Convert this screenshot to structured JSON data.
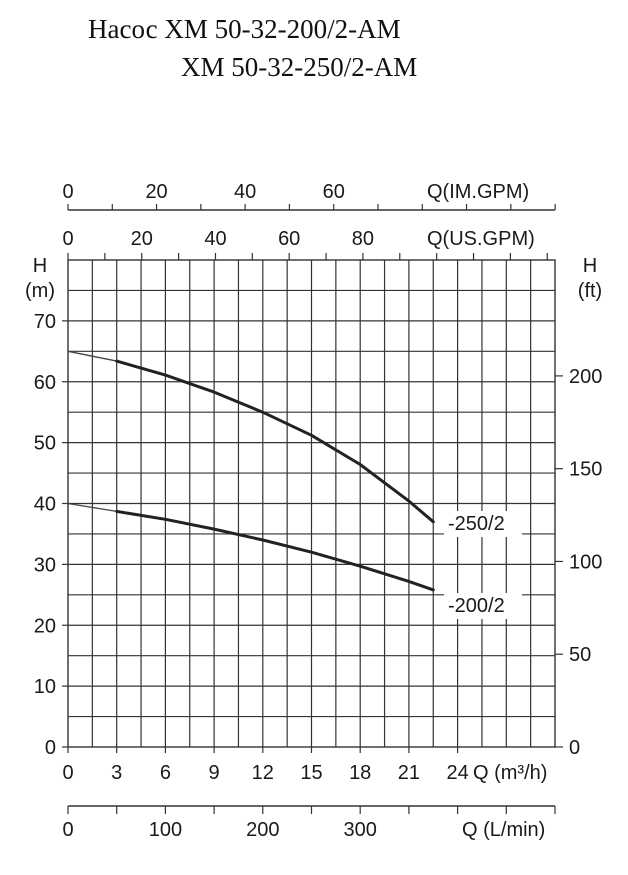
{
  "title_line1": "Насос XM 50-32-200/2-AM",
  "title_line2": "XM 50-32-250/2-AM",
  "chart_data": {
    "type": "line",
    "x_unit": "Q (m³/h)",
    "y_unit": "H (m)",
    "xlim": [
      0,
      30
    ],
    "ylim": [
      0,
      80
    ],
    "grid": true,
    "series": [
      {
        "name": "-250/2",
        "x": [
          0,
          3,
          6,
          9,
          12,
          15,
          18,
          21,
          22.5
        ],
        "y": [
          65,
          63.4,
          61.1,
          58.3,
          55,
          51.2,
          46.4,
          40.4,
          37
        ]
      },
      {
        "name": "-200/2",
        "x": [
          0,
          3,
          6,
          9,
          12,
          15,
          18,
          21,
          22.5
        ],
        "y": [
          40,
          38.7,
          37.4,
          35.8,
          34,
          32,
          29.7,
          27.2,
          25.8
        ]
      }
    ],
    "axes": {
      "top_im": {
        "label": "Q(IM.GPM)",
        "ticks": [
          {
            "v": 0,
            "t": "0"
          },
          {
            "v": 20,
            "t": "20"
          },
          {
            "v": 40,
            "t": "40"
          },
          {
            "v": 60,
            "t": "60"
          }
        ],
        "minor_step": 10,
        "max": 110
      },
      "top_us": {
        "label": "Q(US.GPM)",
        "ticks": [
          {
            "v": 0,
            "t": "0"
          },
          {
            "v": 20,
            "t": "20"
          },
          {
            "v": 40,
            "t": "40"
          },
          {
            "v": 60,
            "t": "60"
          },
          {
            "v": 80,
            "t": "80"
          }
        ],
        "minor_step": 10,
        "max": 132
      },
      "left": {
        "label_1": "H",
        "label_2": "(m)",
        "ticks": [
          {
            "v": 0,
            "t": "0"
          },
          {
            "v": 10,
            "t": "10"
          },
          {
            "v": 20,
            "t": "20"
          },
          {
            "v": 30,
            "t": "30"
          },
          {
            "v": 40,
            "t": "40"
          },
          {
            "v": 50,
            "t": "50"
          },
          {
            "v": 60,
            "t": "60"
          },
          {
            "v": 70,
            "t": "70"
          }
        ]
      },
      "right": {
        "label_1": "H",
        "label_2": "(ft)",
        "ticks": [
          {
            "v": 0,
            "t": "0"
          },
          {
            "v": 50,
            "t": "50"
          },
          {
            "v": 100,
            "t": "100"
          },
          {
            "v": 150,
            "t": "150"
          },
          {
            "v": 200,
            "t": "200"
          }
        ]
      },
      "bottom_m3h": {
        "label": "Q (m³/h)",
        "ticks": [
          {
            "v": 0,
            "t": "0"
          },
          {
            "v": 3,
            "t": "3"
          },
          {
            "v": 6,
            "t": "6"
          },
          {
            "v": 9,
            "t": "9"
          },
          {
            "v": 12,
            "t": "12"
          },
          {
            "v": 15,
            "t": "15"
          },
          {
            "v": 18,
            "t": "18"
          },
          {
            "v": 21,
            "t": "21"
          },
          {
            "v": 24,
            "t": "24"
          }
        ]
      },
      "bottom_lmin": {
        "label": "Q (L/min)",
        "ticks": [
          {
            "v": 0,
            "t": "0"
          },
          {
            "v": 100,
            "t": "100"
          },
          {
            "v": 200,
            "t": "200"
          },
          {
            "v": 300,
            "t": "300"
          }
        ],
        "minor_step": 50,
        "max": 500
      }
    }
  }
}
